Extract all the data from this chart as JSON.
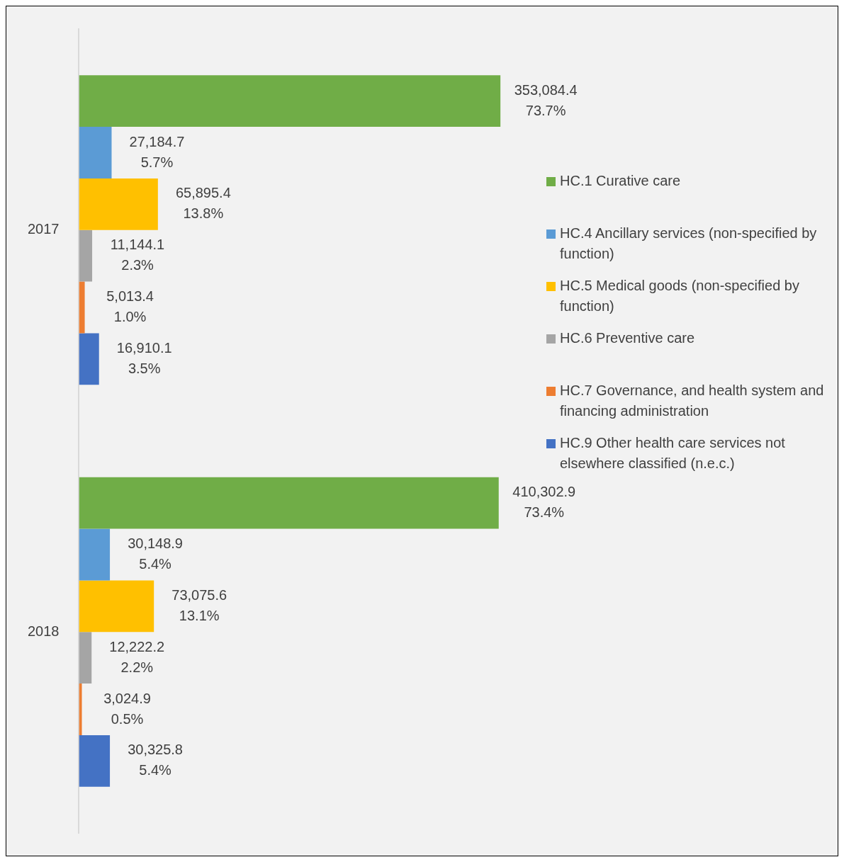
{
  "chart_data": {
    "type": "bar",
    "orientation": "horizontal",
    "categories": [
      "2017",
      "2018"
    ],
    "series": [
      {
        "name": "HC.1 Curative care",
        "color": "#70ad47",
        "values": [
          73.7,
          73.4
        ],
        "value_labels": [
          "353,084.4\n73.7%",
          "410,302.9\n73.4%"
        ]
      },
      {
        "name": "HC.4 Ancillary services (non-specified by function)",
        "color": "#5b9bd5",
        "values": [
          5.7,
          5.4
        ],
        "value_labels": [
          "27,184.7\n5.7%",
          "30,148.9\n5.4%"
        ]
      },
      {
        "name": "HC.5 Medical goods (non-specified by function)",
        "color": "#ffc000",
        "values": [
          13.8,
          13.1
        ],
        "value_labels": [
          "65,895.4\n13.8%",
          "73,075.6\n13.1%"
        ]
      },
      {
        "name": "HC.6 Preventive care",
        "color": "#a5a5a5",
        "values": [
          2.3,
          2.2
        ],
        "value_labels": [
          "11,144.1\n2.3%",
          "12,222.2\n2.2%"
        ]
      },
      {
        "name": "HC.7 Governance, and health system and financing administration",
        "color": "#ed7d31",
        "values": [
          1.0,
          0.5
        ],
        "value_labels": [
          "5,013.4\n1.0%",
          "3,024.9\n0.5%"
        ]
      },
      {
        "name": "HC.9 Other health care services not elsewhere classified (n.e.c.)",
        "color": "#4472c4",
        "values": [
          3.5,
          5.4
        ],
        "value_labels": [
          "16,910.1\n3.5%",
          "30,325.8\n5.4%"
        ]
      }
    ],
    "legend": "right",
    "tick_labels": "y"
  }
}
